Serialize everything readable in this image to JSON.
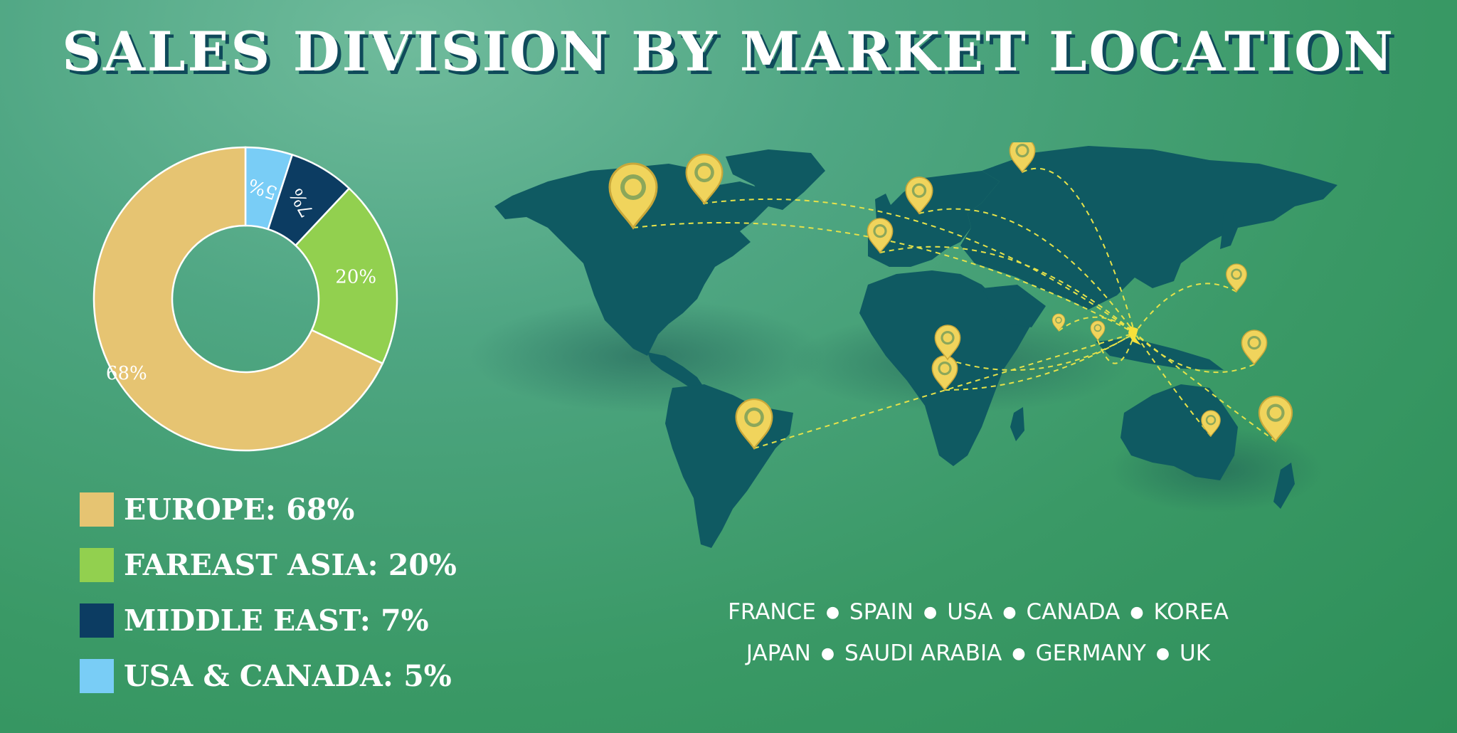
{
  "title": "SALES DIVISION BY MARKET LOCATION",
  "chart_data": {
    "type": "pie",
    "subtype": "donut",
    "title": "SALES DIVISION BY MARKET LOCATION",
    "slices": [
      {
        "name": "EUROPE",
        "value": 68,
        "label": "68%",
        "color": "#e6c472"
      },
      {
        "name": "FAREAST ASIA",
        "value": 20,
        "label": "20%",
        "color": "#92d04f"
      },
      {
        "name": "MIDDLE EAST",
        "value": 7,
        "label": "7%",
        "color": "#0c3c62"
      },
      {
        "name": "USA & CANADA",
        "value": 5,
        "label": "5%",
        "color": "#79cdf6"
      }
    ],
    "legend_position": "bottom-left"
  },
  "legend": [
    {
      "label": "EUROPE: 68%",
      "color": "#e6c472"
    },
    {
      "label": "FAREAST ASIA: 20%",
      "color": "#92d04f"
    },
    {
      "label": "MIDDLE EAST: 7%",
      "color": "#0c3c62"
    },
    {
      "label": "USA & CANADA: 5%",
      "color": "#79cdf6"
    }
  ],
  "countries": {
    "row1": [
      "FRANCE",
      "SPAIN",
      "USA",
      "CANADA",
      "KOREA"
    ],
    "row2": [
      "JAPAN",
      "SAUDI ARABIA",
      "GERMANY",
      "UK"
    ]
  },
  "colors": {
    "land": "#0f5a62",
    "pin": "#f0d45c",
    "route": "#e6e24a",
    "background": "#3f9e6c"
  }
}
